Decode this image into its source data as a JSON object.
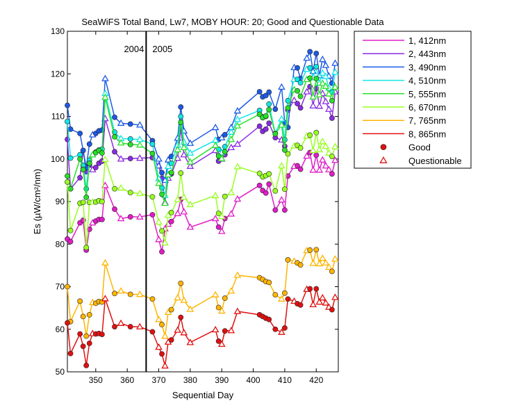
{
  "chart_data": {
    "type": "line",
    "title": "SeaWiFS Total Band,  Lw7, MOBY HOUR: 20;  Good and Questionable Data",
    "xlabel": "Sequential Day",
    "ylabel": "Es (µW/cm²/nm)",
    "xlim": [
      341,
      427
    ],
    "ylim": [
      50,
      130
    ],
    "xticks": [
      350,
      360,
      370,
      380,
      390,
      400,
      410,
      420
    ],
    "yticks": [
      50,
      60,
      70,
      80,
      90,
      100,
      110,
      120,
      130
    ],
    "grid": false,
    "legend_position": "outside-right",
    "year_divider": {
      "x": 366,
      "left_label": "2004",
      "right_label": "2005"
    },
    "marker_legend": {
      "good": "Good",
      "questionable": "Questionable"
    },
    "x": [
      341,
      342,
      345,
      346,
      347,
      348,
      349,
      350,
      351,
      352,
      353,
      356,
      358,
      361,
      364,
      368,
      370,
      371,
      372,
      373,
      374,
      376,
      377,
      378,
      380,
      388,
      389,
      390,
      391,
      393,
      395,
      402,
      403,
      404,
      405,
      407,
      409,
      410,
      411,
      413,
      414,
      415,
      417,
      418,
      419,
      420,
      421,
      422,
      423,
      424,
      425,
      426
    ],
    "series": [
      {
        "name": "1, 412nm",
        "color": "#e01cc8",
        "values": [
          81.2,
          80.6,
          85.0,
          85.6,
          78.6,
          83.5,
          85.0,
          85.4,
          85.8,
          85.8,
          93.8,
          88.2,
          86.0,
          86.4,
          86.4,
          86.9,
          81.1,
          78.2,
          83.6,
          84.7,
          85.3,
          87.2,
          90.5,
          87.6,
          84.0,
          86.0,
          84.0,
          83.0,
          86.0,
          87.1,
          90.6,
          93.8,
          92.6,
          92.0,
          94.1,
          88.0,
          90.4,
          88.0,
          96.0,
          98.3,
          98.4,
          97.6,
          100.7,
          101.5,
          97.4,
          100.9,
          97.4,
          99.8,
          98.4,
          97.5,
          96.5,
          99.7
        ]
      },
      {
        "name": "2, 443nm",
        "color": "#8a2be2",
        "values": [
          104.6,
          93.0,
          95.6,
          102.0,
          97.0,
          98.6,
          97.5,
          98.0,
          99.0,
          99.5,
          109.5,
          101.7,
          100.0,
          100.1,
          100.2,
          100.3,
          98.4,
          95.4,
          89.8,
          95.5,
          96.5,
          100.2,
          107.3,
          101.0,
          98.3,
          102.0,
          99.5,
          100.0,
          101.0,
          102.7,
          103.5,
          107.7,
          106.5,
          107.0,
          108.4,
          105.0,
          104.5,
          103.0,
          111.5,
          113.8,
          113.0,
          112.0,
          115.8,
          117.0,
          112.5,
          116.6,
          112.4,
          115.4,
          113.5,
          111.7,
          109.6,
          115.8
        ]
      },
      {
        "name": "3, 490nm",
        "color": "#1c5ae6",
        "values": [
          112.6,
          107.0,
          106.0,
          102.0,
          98.0,
          103.5,
          105.7,
          106.0,
          106.6,
          106.8,
          118.9,
          109.8,
          108.4,
          108.2,
          108.0,
          104.3,
          100.0,
          96.8,
          95.0,
          99.8,
          100.6,
          104.9,
          112.2,
          106.6,
          103.7,
          107.4,
          104.6,
          105.0,
          105.7,
          107.4,
          111.3,
          115.8,
          114.6,
          114.9,
          115.7,
          111.7,
          116.9,
          108.5,
          107.4,
          121.5,
          121.4,
          118.9,
          123.7,
          125.2,
          120.6,
          124.8,
          119.6,
          123.4,
          122.0,
          119.5,
          117.8,
          122.5
        ]
      },
      {
        "name": "4, 510nm",
        "color": "#10e6e6",
        "values": [
          108.8,
          100.2,
          101.0,
          98.5,
          93.0,
          99.7,
          101.0,
          101.6,
          102.1,
          102.3,
          115.4,
          106.3,
          104.8,
          104.7,
          104.6,
          103.5,
          95.4,
          93.2,
          91.5,
          98.3,
          99.0,
          103.3,
          110.0,
          104.0,
          101.4,
          104.4,
          102.3,
          101.5,
          102.9,
          106.3,
          109.3,
          111.4,
          109.9,
          110.0,
          112.9,
          106.0,
          109.4,
          104.5,
          113.7,
          118.7,
          118.7,
          117.9,
          121.1,
          121.4,
          119.1,
          121.7,
          117.8,
          120.2,
          119.4,
          116.7,
          115.7,
          120.4
        ]
      },
      {
        "name": "5, 555nm",
        "color": "#28e028",
        "values": [
          96.0,
          93.0,
          100.0,
          97.5,
          91.0,
          99.0,
          101.0,
          101.5,
          102.0,
          101.4,
          114.5,
          105.2,
          103.8,
          103.4,
          103.3,
          101.3,
          94.3,
          91.7,
          89.6,
          96.3,
          96.8,
          102.2,
          108.6,
          102.7,
          99.3,
          103.2,
          100.7,
          100.1,
          101.7,
          104.6,
          107.8,
          110.5,
          109.7,
          110.1,
          111.6,
          105.9,
          108.0,
          102.1,
          112.0,
          116.3,
          116.0,
          114.7,
          118.7,
          119.0,
          114.6,
          118.9,
          115.1,
          117.8,
          117.1,
          115.3,
          113.7,
          116.9
        ]
      },
      {
        "name": "6, 670nm",
        "color": "#98ff20",
        "values": [
          94.6,
          83.2,
          89.6,
          89.8,
          79.2,
          89.8,
          89.9,
          89.9,
          90.2,
          90.0,
          99.9,
          93.0,
          93.2,
          92.1,
          91.9,
          91.1,
          85.2,
          83.1,
          80.3,
          86.8,
          87.4,
          90.5,
          96.7,
          91.0,
          89.3,
          91.4,
          87.2,
          86.5,
          91.2,
          92.1,
          98.2,
          96.6,
          95.8,
          96.1,
          96.5,
          92.5,
          98.4,
          92.9,
          101.2,
          103.1,
          103.2,
          102.6,
          105.4,
          105.6,
          102.0,
          106.2,
          102.2,
          104.1,
          103.0,
          101.4,
          100.6,
          102.9
        ]
      },
      {
        "name": "7, 765nm",
        "color": "#ffb400",
        "values": [
          70.0,
          61.8,
          66.6,
          63.0,
          58.4,
          63.4,
          66.3,
          66.1,
          66.5,
          66.4,
          75.6,
          68.4,
          69.0,
          68.2,
          68.2,
          67.1,
          62.3,
          61.1,
          58.4,
          64.0,
          64.6,
          67.4,
          70.8,
          66.8,
          64.7,
          68.1,
          65.1,
          64.3,
          67.3,
          69.0,
          72.7,
          72.1,
          71.7,
          71.2,
          71.0,
          68.1,
          67.1,
          68.5,
          76.3,
          76.0,
          75.6,
          75.1,
          78.5,
          78.6,
          75.5,
          78.7,
          75.4,
          76.7,
          75.6,
          74.6,
          73.6,
          76.5
        ]
      },
      {
        "name": "8, 865nm",
        "color": "#e01010",
        "values": [
          61.5,
          54.3,
          58.9,
          56.0,
          51.5,
          56.7,
          59.0,
          58.9,
          59.0,
          58.8,
          67.2,
          60.6,
          61.4,
          60.6,
          60.6,
          59.4,
          55.8,
          54.2,
          51.4,
          57.0,
          57.5,
          59.8,
          62.8,
          59.2,
          56.9,
          59.9,
          57.2,
          56.5,
          59.6,
          59.7,
          64.2,
          63.4,
          63.0,
          62.6,
          62.3,
          60.0,
          59.3,
          60.3,
          67.1,
          66.6,
          66.0,
          65.7,
          69.4,
          69.5,
          65.8,
          69.5,
          66.4,
          67.4,
          66.2,
          65.2,
          64.6,
          67.5
        ]
      }
    ],
    "questionable_x": [
      349,
      353,
      358,
      364,
      370,
      372,
      373,
      376,
      378,
      380,
      388,
      390,
      393,
      395,
      409,
      413,
      417,
      419,
      421,
      422,
      423,
      424,
      426
    ]
  }
}
